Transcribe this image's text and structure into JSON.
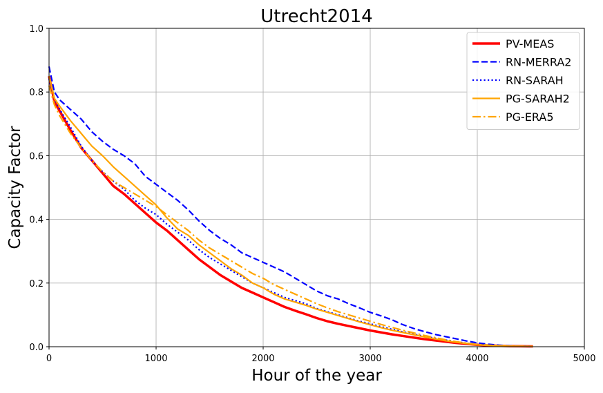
{
  "chart_data": {
    "type": "line",
    "title": "Utrecht2014",
    "xlabel": "Hour of the year",
    "ylabel": "Capacity Factor",
    "xlim": [
      0,
      5000
    ],
    "ylim": [
      0,
      1.0
    ],
    "x_ticks": [
      0,
      1000,
      2000,
      3000,
      4000,
      5000
    ],
    "y_ticks": [
      0.0,
      0.2,
      0.4,
      0.6,
      0.8,
      1.0
    ],
    "x_tick_labels": [
      "0",
      "1000",
      "2000",
      "3000",
      "4000",
      "5000"
    ],
    "y_tick_labels": [
      "0.0",
      "0.2",
      "0.4",
      "0.6",
      "0.8",
      "1.0"
    ],
    "grid": true,
    "legend_position": "top-right",
    "series": [
      {
        "name": "PV-MEAS",
        "color": "#ff0000",
        "style": "solid",
        "width": 3.5,
        "x": [
          0,
          50,
          100,
          200,
          300,
          400,
          500,
          600,
          700,
          800,
          900,
          1000,
          1100,
          1200,
          1300,
          1400,
          1500,
          1600,
          1700,
          1800,
          1900,
          2000,
          2100,
          2200,
          2300,
          2400,
          2500,
          2600,
          2700,
          2800,
          2900,
          3000,
          3100,
          3200,
          3300,
          3400,
          3500,
          3600,
          3700,
          3800,
          3900,
          4000,
          4100,
          4200,
          4300,
          4400,
          4520
        ],
        "y": [
          0.85,
          0.77,
          0.74,
          0.68,
          0.625,
          0.585,
          0.545,
          0.505,
          0.48,
          0.45,
          0.42,
          0.39,
          0.365,
          0.335,
          0.305,
          0.275,
          0.25,
          0.225,
          0.205,
          0.185,
          0.17,
          0.155,
          0.14,
          0.125,
          0.113,
          0.102,
          0.09,
          0.08,
          0.072,
          0.065,
          0.058,
          0.051,
          0.045,
          0.039,
          0.034,
          0.029,
          0.024,
          0.02,
          0.016,
          0.012,
          0.009,
          0.006,
          0.004,
          0.003,
          0.002,
          0.0015,
          0.001
        ]
      },
      {
        "name": "RN-MERRA2",
        "color": "#0000ff",
        "style": "dashed",
        "width": 2.2,
        "x": [
          0,
          50,
          100,
          200,
          300,
          400,
          500,
          600,
          700,
          800,
          900,
          1000,
          1100,
          1200,
          1300,
          1400,
          1500,
          1600,
          1700,
          1800,
          1900,
          2000,
          2100,
          2200,
          2300,
          2400,
          2500,
          2600,
          2700,
          2800,
          2900,
          3000,
          3100,
          3200,
          3300,
          3400,
          3500,
          3600,
          3700,
          3800,
          3900,
          4000,
          4100,
          4200,
          4300,
          4400,
          4520
        ],
        "y": [
          0.88,
          0.8,
          0.775,
          0.745,
          0.715,
          0.675,
          0.645,
          0.62,
          0.6,
          0.575,
          0.535,
          0.51,
          0.485,
          0.46,
          0.43,
          0.395,
          0.365,
          0.34,
          0.32,
          0.295,
          0.28,
          0.265,
          0.25,
          0.235,
          0.215,
          0.195,
          0.175,
          0.16,
          0.15,
          0.135,
          0.122,
          0.108,
          0.097,
          0.085,
          0.07,
          0.058,
          0.048,
          0.039,
          0.032,
          0.025,
          0.018,
          0.012,
          0.008,
          0.005,
          0.003,
          0.002,
          0.001
        ]
      },
      {
        "name": "RN-SARAH",
        "color": "#0000ff",
        "style": "dotted",
        "width": 2.2,
        "x": [
          0,
          50,
          100,
          200,
          300,
          400,
          500,
          600,
          700,
          800,
          900,
          1000,
          1100,
          1200,
          1300,
          1400,
          1500,
          1600,
          1700,
          1800,
          1900,
          2000,
          2100,
          2200,
          2300,
          2400,
          2500,
          2600,
          2700,
          2800,
          2900,
          3000,
          3100,
          3200,
          3300,
          3400,
          3500,
          3600,
          3700,
          3800,
          3900,
          4000,
          4100,
          4200,
          4300,
          4400,
          4520
        ],
        "y": [
          0.84,
          0.78,
          0.745,
          0.69,
          0.63,
          0.585,
          0.55,
          0.52,
          0.495,
          0.46,
          0.435,
          0.415,
          0.385,
          0.36,
          0.335,
          0.305,
          0.28,
          0.26,
          0.24,
          0.22,
          0.2,
          0.185,
          0.17,
          0.155,
          0.145,
          0.135,
          0.12,
          0.11,
          0.1,
          0.09,
          0.08,
          0.072,
          0.063,
          0.055,
          0.047,
          0.04,
          0.033,
          0.027,
          0.021,
          0.016,
          0.011,
          0.007,
          0.005,
          0.003,
          0.002,
          0.0015,
          0.001
        ]
      },
      {
        "name": "PG-SARAH2",
        "color": "#ffa500",
        "style": "solid",
        "width": 2.2,
        "x": [
          0,
          50,
          100,
          200,
          300,
          400,
          500,
          600,
          700,
          800,
          900,
          1000,
          1100,
          1200,
          1300,
          1400,
          1500,
          1600,
          1700,
          1800,
          1900,
          2000,
          2100,
          2200,
          2300,
          2400,
          2500,
          2600,
          2700,
          2800,
          2900,
          3000,
          3100,
          3200,
          3300,
          3400,
          3500,
          3600,
          3700,
          3800,
          3900,
          4000,
          4100,
          4200,
          4300,
          4400,
          4520
        ],
        "y": [
          0.85,
          0.78,
          0.755,
          0.71,
          0.67,
          0.63,
          0.6,
          0.565,
          0.535,
          0.505,
          0.475,
          0.445,
          0.405,
          0.37,
          0.35,
          0.32,
          0.295,
          0.27,
          0.245,
          0.225,
          0.2,
          0.185,
          0.165,
          0.15,
          0.14,
          0.13,
          0.118,
          0.108,
          0.098,
          0.088,
          0.078,
          0.069,
          0.06,
          0.052,
          0.045,
          0.038,
          0.031,
          0.025,
          0.019,
          0.014,
          0.01,
          0.006,
          0.004,
          0.003,
          0.002,
          0.0015,
          0.001
        ]
      },
      {
        "name": "PG-ERA5",
        "color": "#ffa500",
        "style": "dashdot",
        "width": 2.2,
        "x": [
          0,
          50,
          100,
          200,
          300,
          400,
          500,
          600,
          700,
          800,
          900,
          1000,
          1100,
          1200,
          1300,
          1400,
          1500,
          1600,
          1700,
          1800,
          1900,
          2000,
          2100,
          2200,
          2300,
          2400,
          2500,
          2600,
          2700,
          2800,
          2900,
          3000,
          3100,
          3200,
          3300,
          3400,
          3500,
          3600,
          3700,
          3800,
          3900,
          4000,
          4100,
          4200,
          4300,
          4400,
          4520
        ],
        "y": [
          0.82,
          0.76,
          0.725,
          0.67,
          0.625,
          0.585,
          0.55,
          0.52,
          0.5,
          0.48,
          0.46,
          0.44,
          0.415,
          0.39,
          0.365,
          0.335,
          0.31,
          0.29,
          0.27,
          0.25,
          0.23,
          0.215,
          0.195,
          0.18,
          0.165,
          0.15,
          0.135,
          0.122,
          0.11,
          0.1,
          0.09,
          0.08,
          0.07,
          0.061,
          0.052,
          0.044,
          0.036,
          0.029,
          0.022,
          0.016,
          0.011,
          0.007,
          0.005,
          0.003,
          0.002,
          0.0015,
          0.001
        ]
      }
    ]
  }
}
